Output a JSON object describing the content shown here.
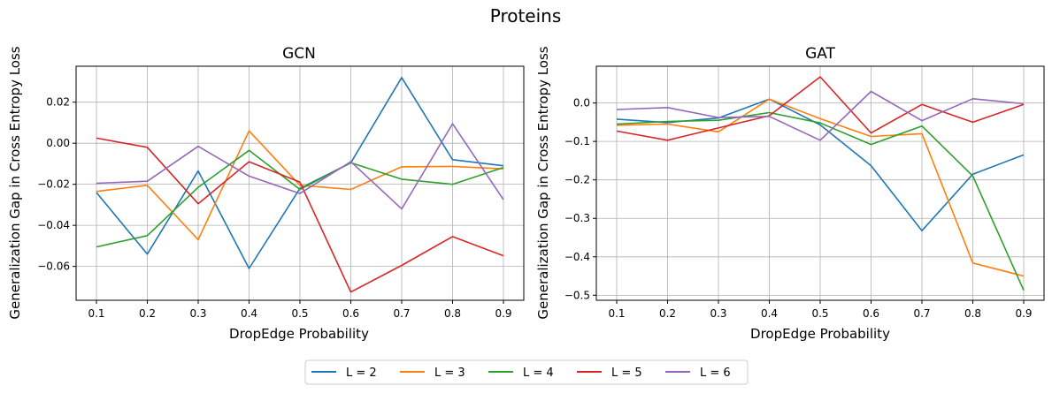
{
  "suptitle": "Proteins",
  "legend": {
    "placement": "bottom-center",
    "entries": [
      {
        "label": "L = 2",
        "color": "#1f77b4"
      },
      {
        "label": "L = 3",
        "color": "#ff7f0e"
      },
      {
        "label": "L = 4",
        "color": "#2ca02c"
      },
      {
        "label": "L = 5",
        "color": "#d62728"
      },
      {
        "label": "L = 6",
        "color": "#9467bd"
      }
    ]
  },
  "chart_data": [
    {
      "type": "line",
      "title": "GCN",
      "xlabel": "DropEdge Probability",
      "ylabel": "Generalization Gap in Cross Entropy Loss",
      "grid": true,
      "x": [
        0.1,
        0.2,
        0.3,
        0.4,
        0.5,
        0.6,
        0.7,
        0.8,
        0.9
      ],
      "xticks": [
        "0.1",
        "0.2",
        "0.3",
        "0.4",
        "0.5",
        "0.6",
        "0.7",
        "0.8",
        "0.9"
      ],
      "xlim": [
        0.06,
        0.94
      ],
      "yticks": [
        0.02,
        0.0,
        -0.02,
        -0.04,
        -0.06
      ],
      "ytick_labels": [
        "0.02",
        "0.00",
        "−0.02",
        "−0.04",
        "−0.06"
      ],
      "ylim": [
        -0.0765,
        0.0375
      ],
      "series": [
        {
          "name": "L = 2",
          "color": "#1f77b4",
          "values": [
            -0.024,
            -0.054,
            -0.0135,
            -0.061,
            -0.022,
            -0.0095,
            0.032,
            -0.008,
            -0.011
          ]
        },
        {
          "name": "L = 3",
          "color": "#ff7f0e",
          "values": [
            -0.0235,
            -0.0205,
            -0.047,
            0.006,
            -0.0205,
            -0.0225,
            -0.0115,
            -0.0113,
            -0.0125
          ]
        },
        {
          "name": "L = 4",
          "color": "#2ca02c",
          "values": [
            -0.0505,
            -0.045,
            -0.0215,
            -0.0035,
            -0.0225,
            -0.0095,
            -0.0175,
            -0.02,
            -0.0118
          ]
        },
        {
          "name": "L = 5",
          "color": "#d62728",
          "values": [
            0.0025,
            -0.002,
            -0.0295,
            -0.009,
            -0.019,
            -0.0725,
            -0.0595,
            -0.0455,
            -0.0548
          ]
        },
        {
          "name": "L = 6",
          "color": "#9467bd",
          "values": [
            -0.0195,
            -0.0185,
            -0.0015,
            -0.016,
            -0.0245,
            -0.009,
            -0.032,
            0.0095,
            -0.0275
          ]
        }
      ]
    },
    {
      "type": "line",
      "title": "GAT",
      "xlabel": "DropEdge Probability",
      "ylabel": "Generalization Gap in Cross Entropy Loss",
      "grid": true,
      "x": [
        0.1,
        0.2,
        0.3,
        0.4,
        0.5,
        0.6,
        0.7,
        0.8,
        0.9
      ],
      "xticks": [
        "0.1",
        "0.2",
        "0.3",
        "0.4",
        "0.5",
        "0.6",
        "0.7",
        "0.8",
        "0.9"
      ],
      "xlim": [
        0.06,
        0.94
      ],
      "yticks": [
        0.0,
        -0.1,
        -0.2,
        -0.3,
        -0.4,
        -0.5
      ],
      "ytick_labels": [
        "0.0",
        "−0.1",
        "−0.2",
        "−0.3",
        "−0.4",
        "−0.5"
      ],
      "ylim": [
        -0.513,
        0.0955
      ],
      "series": [
        {
          "name": "L = 2",
          "color": "#1f77b4",
          "values": [
            -0.042,
            -0.051,
            -0.039,
            0.01,
            -0.057,
            -0.163,
            -0.332,
            -0.185,
            -0.135
          ]
        },
        {
          "name": "L = 3",
          "color": "#ff7f0e",
          "values": [
            -0.058,
            -0.055,
            -0.075,
            0.01,
            -0.041,
            -0.087,
            -0.08,
            -0.416,
            -0.45
          ]
        },
        {
          "name": "L = 4",
          "color": "#2ca02c",
          "values": [
            -0.055,
            -0.048,
            -0.045,
            -0.025,
            -0.052,
            -0.108,
            -0.06,
            -0.19,
            -0.487
          ]
        },
        {
          "name": "L = 5",
          "color": "#d62728",
          "values": [
            -0.073,
            -0.097,
            -0.065,
            -0.033,
            0.068,
            -0.078,
            -0.004,
            -0.05,
            -0.004
          ]
        },
        {
          "name": "L = 6",
          "color": "#9467bd",
          "values": [
            -0.017,
            -0.012,
            -0.038,
            -0.035,
            -0.097,
            0.03,
            -0.046,
            0.011,
            -0.002
          ]
        }
      ]
    }
  ]
}
